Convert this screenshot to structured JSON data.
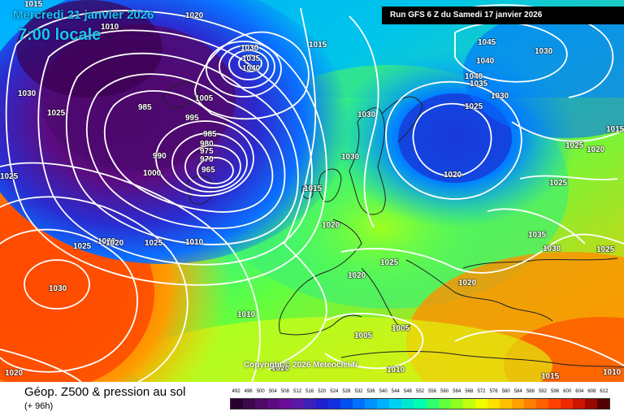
{
  "header": {
    "date": "Mercredi 21 janvier 2026",
    "time": "7:00 locale",
    "run": "Run GFS 6 Z du Samedi 17 janvier 2026"
  },
  "copyright": "Copyright © 2026 Meteociel.fr",
  "footer": {
    "title": "Géop. Z500 & pression au sol",
    "subtitle": "(+ 96h)"
  },
  "scale": {
    "values": [
      "492",
      "496",
      "500",
      "504",
      "508",
      "512",
      "516",
      "520",
      "524",
      "528",
      "532",
      "536",
      "540",
      "544",
      "548",
      "552",
      "556",
      "560",
      "564",
      "568",
      "572",
      "576",
      "580",
      "584",
      "588",
      "592",
      "596",
      "600",
      "604",
      "608",
      "612"
    ],
    "colors": [
      "#2a0030",
      "#3c0a4a",
      "#4e0a66",
      "#5c0c80",
      "#6a0c98",
      "#5818a8",
      "#3c20b8",
      "#2020d0",
      "#1030e0",
      "#0050f0",
      "#0070ff",
      "#0090ff",
      "#00b0ff",
      "#00d0f0",
      "#00e8d0",
      "#00ffb0",
      "#30ff70",
      "#60ff40",
      "#90ff20",
      "#c0ff10",
      "#f0ff00",
      "#ffe000",
      "#ffc000",
      "#ffa000",
      "#ff8000",
      "#ff6000",
      "#ff4000",
      "#ee2800",
      "#cc1400",
      "#990800",
      "#550000"
    ]
  },
  "pressure_labels": [
    "1015",
    "1020",
    "1010",
    "1030",
    "1025",
    "1025",
    "985",
    "995",
    "1005",
    "990",
    "1000",
    "985",
    "980",
    "975",
    "970",
    "965",
    "1030",
    "1035",
    "1040",
    "1020",
    "1015",
    "1030",
    "1030",
    "1045",
    "1030",
    "1040",
    "1040",
    "1035",
    "1025",
    "1030",
    "1020",
    "1015",
    "1025",
    "1020",
    "1025",
    "1025",
    "1015",
    "1010",
    "1020",
    "1030",
    "1025",
    "1020",
    "1035",
    "1030",
    "1025",
    "1025",
    "1020",
    "1020",
    "1010",
    "1005",
    "1005",
    "1010",
    "1020",
    "1015",
    "1010",
    "1020"
  ]
}
